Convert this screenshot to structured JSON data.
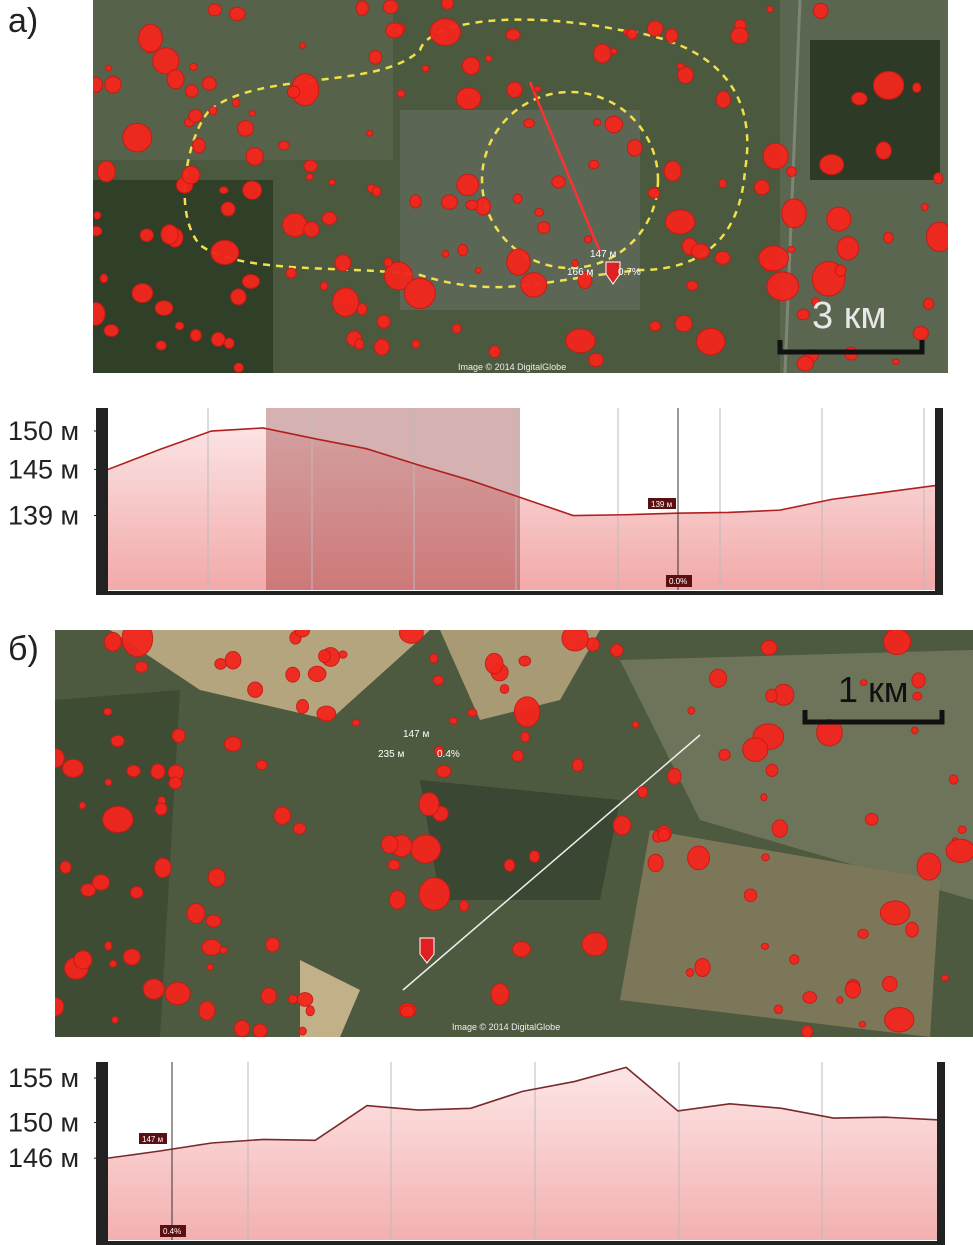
{
  "panels": [
    {
      "label": "а)",
      "map": {
        "scale_label": "3 км",
        "credit": "Image © 2014 DigitalGlobe",
        "marker_elevation": "147 м",
        "marker_distance": "166 м",
        "marker_grade": "0.7%"
      }
    },
    {
      "label": "б)",
      "map": {
        "scale_label": "1 км",
        "credit": "Image © 2014 DigitalGlobe",
        "marker_elevation": "147 м",
        "marker_distance": "235 м",
        "marker_grade": "0.4%"
      }
    }
  ],
  "chart_data": [
    {
      "type": "line",
      "color": "#b02020",
      "ylim": [
        129.3,
        153
      ],
      "yticks": [
        {
          "value": 150,
          "label": "150 м"
        },
        {
          "value": 145,
          "label": "145 м"
        },
        {
          "value": 139,
          "label": "139 м"
        }
      ],
      "values": [
        145,
        147.6,
        150,
        150.4,
        149,
        147.7,
        145.6,
        143.6,
        141.3,
        139,
        139.1,
        139.3,
        139.4,
        139.7,
        141.1,
        142,
        142.9
      ],
      "marker_label": "139 м",
      "marker_grade": "0.0%"
    },
    {
      "type": "line",
      "color": "#7a2a2a",
      "ylim": [
        136.8,
        156.8
      ],
      "yticks": [
        {
          "value": 155,
          "label": "155 м"
        },
        {
          "value": 150,
          "label": "150 м"
        },
        {
          "value": 146,
          "label": "146 м"
        }
      ],
      "values": [
        146,
        146.8,
        147.7,
        148.1,
        148,
        151.9,
        151.4,
        151.6,
        153.5,
        154.6,
        156.2,
        151.3,
        152.1,
        151.6,
        150.5,
        150.6,
        150.3
      ],
      "marker_label": "147 м",
      "marker_grade": "0.4%"
    }
  ]
}
